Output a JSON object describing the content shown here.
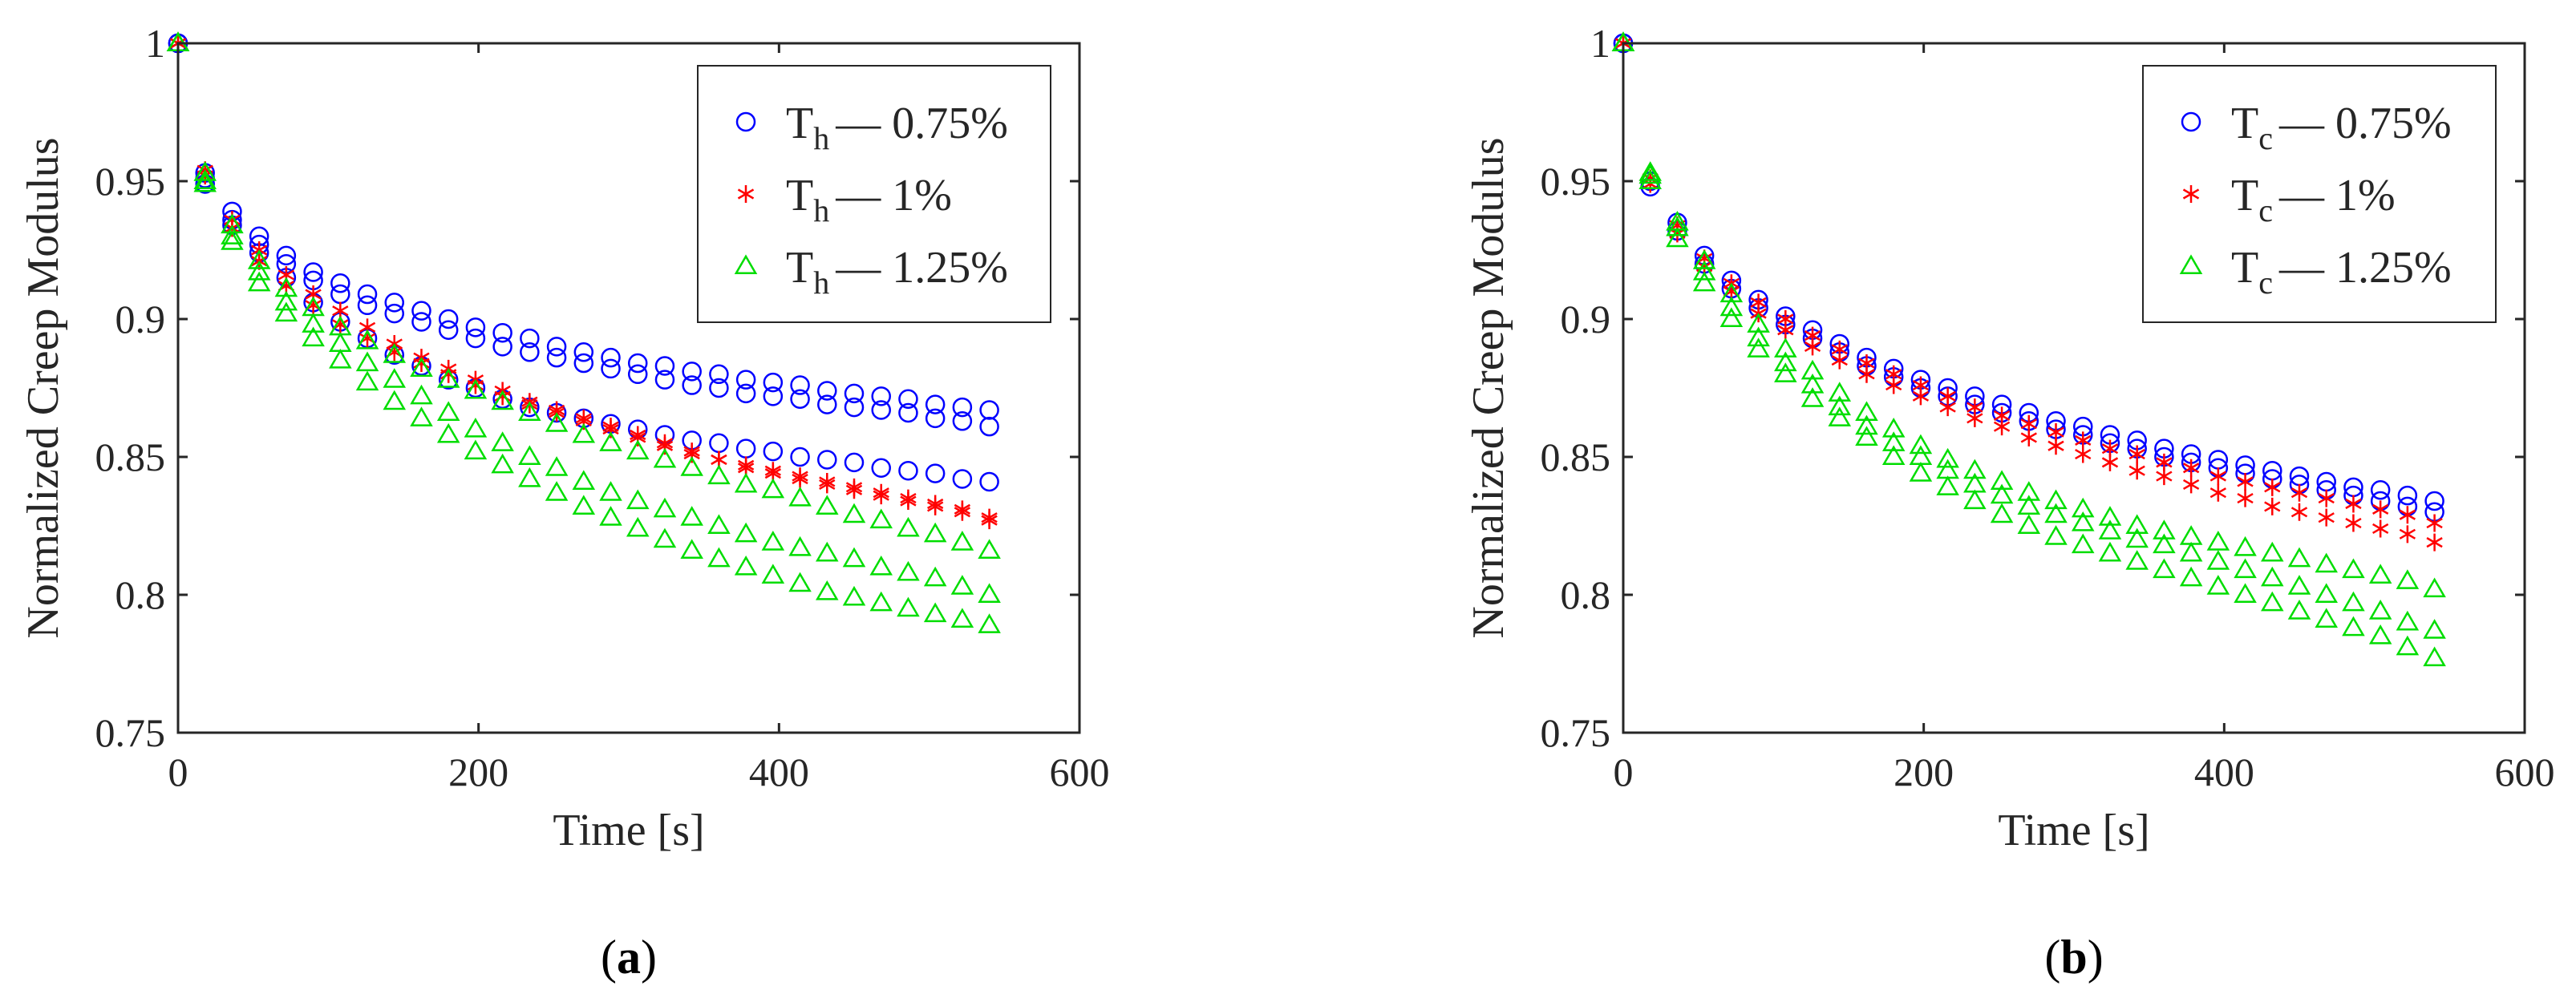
{
  "chart_data": [
    {
      "type": "scatter",
      "panel_label": "a",
      "xlabel": "Time [s]",
      "ylabel": "Normalized Creep Modulus",
      "xlim": [
        0,
        600
      ],
      "ylim": [
        0.75,
        1
      ],
      "xticks": [
        "0",
        "200",
        "400",
        "600"
      ],
      "yticks": [
        "0.75",
        "0.8",
        "0.85",
        "0.9",
        "0.95",
        "1"
      ],
      "legend_position": "top-right",
      "colors": {
        "blue": "#0000ff",
        "red": "#ff0000",
        "green": "#00dd00"
      },
      "x": [
        0,
        18,
        36,
        54,
        72,
        90,
        108,
        126,
        144,
        162,
        180,
        198,
        216,
        234,
        252,
        270,
        288,
        306,
        324,
        342,
        360,
        378,
        396,
        414,
        432,
        450,
        468,
        486,
        504,
        522,
        540
      ],
      "series": [
        {
          "name": "0.75%",
          "legend_base": "T",
          "legend_sub": "h",
          "legend_text": "— 0.75%",
          "marker": "circle",
          "color": "#0000ff",
          "runs": [
            [
              1.0,
              0.953,
              0.939,
              0.93,
              0.923,
              0.917,
              0.913,
              0.909,
              0.906,
              0.903,
              0.9,
              0.897,
              0.895,
              0.893,
              0.89,
              0.888,
              0.886,
              0.884,
              0.883,
              0.881,
              0.88,
              0.878,
              0.877,
              0.876,
              0.874,
              0.873,
              0.872,
              0.871,
              0.869,
              0.868,
              0.867
            ],
            [
              1.0,
              0.951,
              0.936,
              0.927,
              0.92,
              0.914,
              0.909,
              0.905,
              0.902,
              0.899,
              0.896,
              0.893,
              0.89,
              0.888,
              0.886,
              0.884,
              0.882,
              0.88,
              0.878,
              0.876,
              0.875,
              0.873,
              0.872,
              0.871,
              0.869,
              0.868,
              0.867,
              0.866,
              0.864,
              0.863,
              0.861
            ],
            [
              1.0,
              0.949,
              0.934,
              0.924,
              0.915,
              0.906,
              0.899,
              0.893,
              0.887,
              0.883,
              0.878,
              0.875,
              0.871,
              0.868,
              0.866,
              0.864,
              0.862,
              0.86,
              0.858,
              0.856,
              0.855,
              0.853,
              0.852,
              0.85,
              0.849,
              0.848,
              0.846,
              0.845,
              0.844,
              0.842,
              0.841
            ]
          ]
        },
        {
          "name": "1%",
          "legend_base": "T",
          "legend_sub": "h",
          "legend_text": "— 1%",
          "marker": "asterisk",
          "color": "#ff0000",
          "runs": [
            [
              1.0,
              0.952,
              0.933,
              0.921,
              0.912,
              0.905,
              0.898,
              0.893,
              0.888,
              0.884,
              0.88,
              0.876,
              0.872,
              0.869,
              0.866,
              0.863,
              0.86,
              0.857,
              0.854,
              0.851,
              0.849,
              0.846,
              0.844,
              0.842,
              0.84,
              0.838,
              0.836,
              0.834,
              0.832,
              0.83,
              0.828
            ],
            [
              1.0,
              0.954,
              0.936,
              0.925,
              0.916,
              0.909,
              0.903,
              0.897,
              0.891,
              0.886,
              0.882,
              0.878,
              0.874,
              0.87,
              0.867,
              0.864,
              0.861,
              0.858,
              0.855,
              0.852,
              0.849,
              0.847,
              0.845,
              0.843,
              0.841,
              0.839,
              0.837,
              0.835,
              0.833,
              0.831,
              0.827
            ]
          ]
        },
        {
          "name": "1.25%",
          "legend_base": "T",
          "legend_sub": "h",
          "legend_text": "— 1.25%",
          "marker": "triangle",
          "color": "#00dd00",
          "runs": [
            [
              1.0,
              0.953,
              0.934,
              0.921,
              0.911,
              0.904,
              0.897,
              0.892,
              0.887,
              0.882,
              0.878,
              0.874,
              0.87,
              0.866,
              0.862,
              0.858,
              0.855,
              0.852,
              0.849,
              0.846,
              0.843,
              0.84,
              0.838,
              0.835,
              0.832,
              0.829,
              0.827,
              0.824,
              0.822,
              0.819,
              0.816
            ],
            [
              1.0,
              0.95,
              0.93,
              0.917,
              0.906,
              0.898,
              0.891,
              0.884,
              0.878,
              0.872,
              0.866,
              0.86,
              0.855,
              0.85,
              0.846,
              0.841,
              0.837,
              0.834,
              0.831,
              0.828,
              0.825,
              0.822,
              0.819,
              0.817,
              0.815,
              0.813,
              0.81,
              0.808,
              0.806,
              0.803,
              0.8
            ],
            [
              1.0,
              0.949,
              0.928,
              0.913,
              0.902,
              0.893,
              0.885,
              0.877,
              0.87,
              0.864,
              0.858,
              0.852,
              0.847,
              0.842,
              0.837,
              0.832,
              0.828,
              0.824,
              0.82,
              0.816,
              0.813,
              0.81,
              0.807,
              0.804,
              0.801,
              0.799,
              0.797,
              0.795,
              0.793,
              0.791,
              0.789
            ]
          ]
        }
      ]
    },
    {
      "type": "scatter",
      "panel_label": "b",
      "xlabel": "Time [s]",
      "ylabel": "Normalized Creep Modulus",
      "xlim": [
        0,
        600
      ],
      "ylim": [
        0.75,
        1
      ],
      "xticks": [
        "0",
        "200",
        "400",
        "600"
      ],
      "yticks": [
        "0.75",
        "0.8",
        "0.85",
        "0.9",
        "0.95",
        "1"
      ],
      "legend_position": "top-right",
      "colors": {
        "blue": "#0000ff",
        "red": "#ff0000",
        "green": "#00dd00"
      },
      "x": [
        0,
        18,
        36,
        54,
        72,
        90,
        108,
        126,
        144,
        162,
        180,
        198,
        216,
        234,
        252,
        270,
        288,
        306,
        324,
        342,
        360,
        378,
        396,
        414,
        432,
        450,
        468,
        486,
        504,
        522,
        540
      ],
      "series": [
        {
          "name": "0.75%",
          "legend_base": "T",
          "legend_sub": "c",
          "legend_text": "— 0.75%",
          "marker": "circle",
          "color": "#0000ff",
          "runs": [
            [
              1.0,
              0.95,
              0.935,
              0.923,
              0.914,
              0.907,
              0.901,
              0.896,
              0.891,
              0.886,
              0.882,
              0.878,
              0.875,
              0.872,
              0.869,
              0.866,
              0.863,
              0.861,
              0.858,
              0.856,
              0.853,
              0.851,
              0.849,
              0.847,
              0.845,
              0.843,
              0.841,
              0.839,
              0.838,
              0.836,
              0.834
            ],
            [
              1.0,
              0.948,
              0.932,
              0.92,
              0.911,
              0.904,
              0.898,
              0.893,
              0.888,
              0.883,
              0.879,
              0.875,
              0.872,
              0.869,
              0.866,
              0.863,
              0.86,
              0.858,
              0.855,
              0.853,
              0.85,
              0.848,
              0.846,
              0.844,
              0.842,
              0.84,
              0.838,
              0.836,
              0.834,
              0.832,
              0.83
            ]
          ]
        },
        {
          "name": "1%",
          "legend_base": "T",
          "legend_sub": "c",
          "legend_text": "— 1%",
          "marker": "asterisk",
          "color": "#ff0000",
          "runs": [
            [
              1.0,
              0.951,
              0.934,
              0.922,
              0.913,
              0.906,
              0.9,
              0.894,
              0.889,
              0.884,
              0.88,
              0.876,
              0.872,
              0.868,
              0.865,
              0.862,
              0.859,
              0.856,
              0.853,
              0.851,
              0.848,
              0.846,
              0.843,
              0.841,
              0.839,
              0.837,
              0.835,
              0.833,
              0.831,
              0.829,
              0.826
            ],
            [
              1.0,
              0.949,
              0.931,
              0.919,
              0.91,
              0.902,
              0.896,
              0.89,
              0.885,
              0.88,
              0.876,
              0.872,
              0.868,
              0.864,
              0.861,
              0.857,
              0.854,
              0.851,
              0.848,
              0.845,
              0.843,
              0.84,
              0.837,
              0.835,
              0.832,
              0.83,
              0.828,
              0.826,
              0.824,
              0.822,
              0.819
            ]
          ]
        },
        {
          "name": "1.25%",
          "legend_base": "T",
          "legend_sub": "c",
          "legend_text": "— 1.25%",
          "marker": "triangle",
          "color": "#00dd00",
          "runs": [
            [
              1.0,
              0.953,
              0.933,
              0.917,
              0.904,
              0.893,
              0.884,
              0.876,
              0.868,
              0.861,
              0.855,
              0.85,
              0.845,
              0.84,
              0.836,
              0.832,
              0.829,
              0.826,
              0.823,
              0.82,
              0.818,
              0.815,
              0.812,
              0.809,
              0.806,
              0.803,
              0.8,
              0.797,
              0.794,
              0.79,
              0.787
            ],
            [
              1.0,
              0.95,
              0.929,
              0.913,
              0.9,
              0.889,
              0.88,
              0.871,
              0.864,
              0.857,
              0.85,
              0.844,
              0.839,
              0.834,
              0.829,
              0.825,
              0.821,
              0.818,
              0.815,
              0.812,
              0.809,
              0.806,
              0.803,
              0.8,
              0.797,
              0.794,
              0.791,
              0.788,
              0.785,
              0.781,
              0.777
            ],
            [
              1.0,
              0.952,
              0.935,
              0.921,
              0.909,
              0.898,
              0.889,
              0.881,
              0.873,
              0.866,
              0.86,
              0.854,
              0.849,
              0.845,
              0.841,
              0.837,
              0.834,
              0.831,
              0.828,
              0.825,
              0.823,
              0.821,
              0.819,
              0.817,
              0.815,
              0.813,
              0.811,
              0.809,
              0.807,
              0.805,
              0.802
            ]
          ]
        }
      ]
    }
  ]
}
